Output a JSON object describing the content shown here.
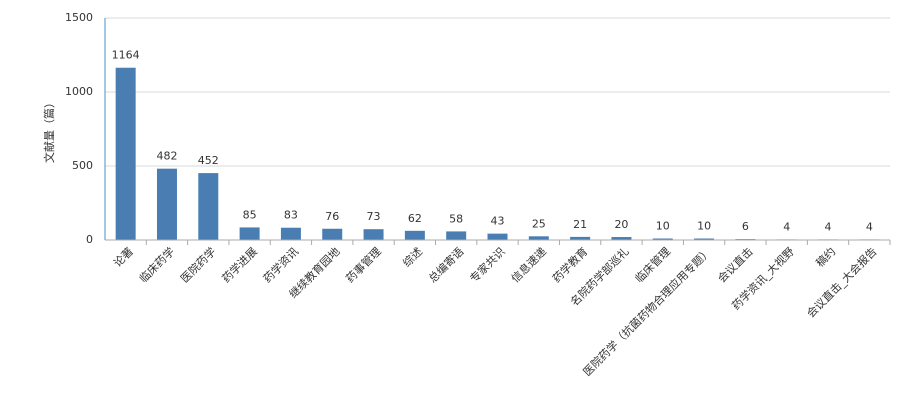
{
  "chart_data": {
    "type": "bar",
    "y_label": "文献量（篇）",
    "categories": [
      "论著",
      "临床药学",
      "医院药学",
      "药学进展",
      "药学资讯",
      "继续教育园地",
      "药事管理",
      "综述",
      "总编寄语",
      "专家共识",
      "信息速递",
      "药学教育",
      "名院药学部巡礼",
      "临床管理",
      "医院药学（抗菌药物合理应用专题）",
      "会议直击",
      "药学资讯_大视野",
      "稿约",
      "会议直击_大会报告"
    ],
    "values": [
      1164,
      482,
      452,
      85,
      83,
      76,
      73,
      62,
      58,
      43,
      25,
      21,
      20,
      10,
      10,
      6,
      4,
      4,
      4
    ],
    "color": "#4a7eb3",
    "ylim": [
      0,
      1500
    ],
    "yticks": [
      0,
      500,
      1000,
      1500
    ],
    "grid": true
  }
}
